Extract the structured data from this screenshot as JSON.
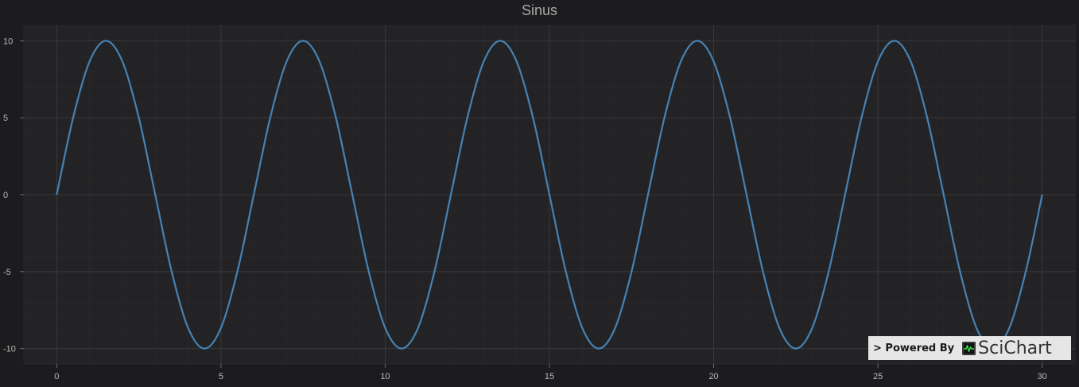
{
  "chart_data": {
    "type": "line",
    "title": "Sinus",
    "xlabel": "",
    "ylabel": "",
    "xlim": [
      -1,
      31
    ],
    "ylim": [
      -11,
      11
    ],
    "x_ticks": [
      0,
      5,
      10,
      15,
      20,
      25,
      30
    ],
    "y_ticks": [
      10,
      5,
      0,
      -5,
      -10
    ],
    "grid": true,
    "legend": "none",
    "series": [
      {
        "color": "#4682b4",
        "x": [
          0,
          0.5,
          1,
          1.5,
          2,
          2.5,
          3,
          3.5,
          4,
          4.5,
          5,
          5.5,
          6,
          6.5,
          7,
          7.5,
          8,
          8.5,
          9,
          9.5,
          10,
          10.5,
          11,
          11.5,
          12,
          12.5,
          13,
          13.5,
          14,
          14.5,
          15,
          15.5,
          16,
          16.5,
          17,
          17.5,
          18,
          18.5,
          19,
          19.5,
          20,
          20.5,
          21,
          21.5,
          22,
          22.5,
          23,
          23.5,
          24,
          24.5,
          25,
          25.5,
          26,
          26.5,
          27,
          27.5,
          28,
          28.5,
          29,
          29.5,
          30
        ],
        "y": [
          0,
          5,
          8.66,
          10,
          8.66,
          5,
          0,
          -5,
          -8.66,
          -10,
          -8.66,
          -5,
          0,
          5,
          8.66,
          10,
          8.66,
          5,
          0,
          -5,
          -8.66,
          -10,
          -8.66,
          -5,
          0,
          5,
          8.66,
          10,
          8.66,
          5,
          0,
          -5,
          -8.66,
          -10,
          -8.66,
          -5,
          0,
          5,
          8.66,
          10,
          8.66,
          5,
          0,
          -5,
          -8.66,
          -10,
          -8.66,
          -5,
          0,
          5,
          8.66,
          10,
          8.66,
          5,
          0,
          -5,
          -8.66,
          -10,
          -8.66,
          -5,
          0
        ]
      }
    ]
  },
  "watermark": {
    "text": "> Powered By",
    "brand": "SciChart",
    "logo_icon": "scichart-logo-icon"
  },
  "colors": {
    "background": "#1c1c1e",
    "plot_background": "#232325",
    "grid_major": "#3a3a3c",
    "grid_minor": "#28282a",
    "line": "#4682b4"
  }
}
